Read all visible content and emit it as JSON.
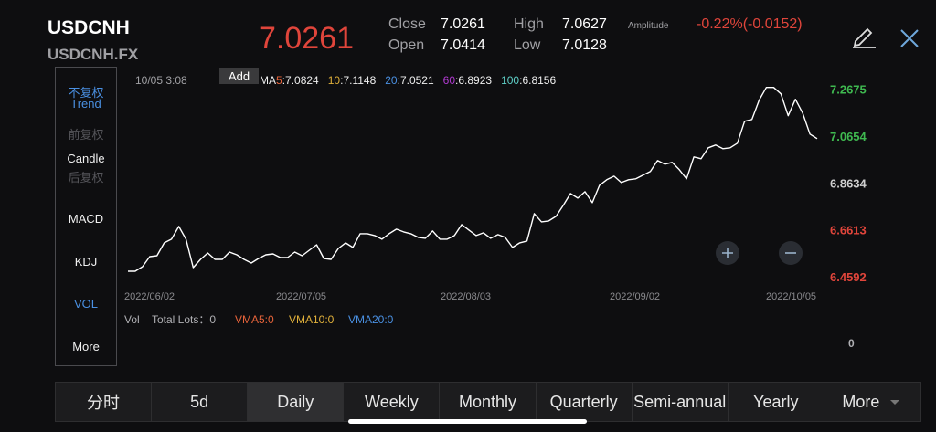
{
  "header": {
    "symbol": "USDCNH",
    "code": "USDCNH.FX",
    "price": "7.0261",
    "close_label": "Close",
    "close": "7.0261",
    "open_label": "Open",
    "open": "7.0414",
    "high_label": "High",
    "high": "7.0627",
    "low_label": "Low",
    "low": "7.0128",
    "amplitude_label": "Amplitude",
    "change": "-0.22%(-0.0152)"
  },
  "sidebar": [
    "不复权",
    "Trend",
    "前复权",
    "Candle",
    "后复权",
    "MACD",
    "KDJ",
    "VOL",
    "More"
  ],
  "chart": {
    "type": "line",
    "date": "10/05 3:08",
    "add": "Add",
    "ma_prefix": "MA",
    "separator": ":",
    "ma": [
      {
        "period": "5",
        "value": "7.0824",
        "color": "#e8643b"
      },
      {
        "period": "10",
        "value": "7.1148",
        "color": "#e0b03a"
      },
      {
        "period": "20",
        "value": "7.0521",
        "color": "#4a90e2"
      },
      {
        "period": "60",
        "value": "6.8923",
        "color": "#b03ad0"
      },
      {
        "period": "100",
        "value": "6.8156",
        "color": "#5fd0c8"
      }
    ],
    "color": "#ffffff",
    "ylim": [
      6.4592,
      7.29
    ],
    "yticks": [
      7.2675,
      7.0654,
      6.8634,
      6.6613,
      6.4592
    ],
    "ytick_colors": [
      "#3fb950",
      "#3fb950",
      "#cfcfcf",
      "#e0453b",
      "#e0453b"
    ],
    "xlabels": [
      "2022/06/02",
      "2022/07/05",
      "2022/08/03",
      "2022/09/02",
      "2022/10/05"
    ],
    "values": [
      6.4829,
      6.4829,
      6.5026,
      6.5459,
      6.5499,
      6.6051,
      6.6209,
      6.6761,
      6.6209,
      6.4986,
      6.5341,
      6.5617,
      6.5341,
      6.5341,
      6.5657,
      6.5538,
      6.5341,
      6.5183,
      6.5381,
      6.5538,
      6.5578,
      6.542,
      6.542,
      6.5657,
      6.5499,
      6.5735,
      6.5972,
      6.5381,
      6.5341,
      6.5814,
      6.6051,
      6.5854,
      6.6445,
      6.6445,
      6.6366,
      6.6209,
      6.6445,
      6.6642,
      6.6524,
      6.6445,
      6.6288,
      6.6248,
      6.6564,
      6.6209,
      6.6209,
      6.6366,
      6.684,
      6.6603,
      6.6366,
      6.6485,
      6.6248,
      6.6406,
      6.6288,
      6.5854,
      6.6051,
      6.613,
      6.7313,
      6.6958,
      6.6997,
      6.7194,
      6.7668,
      6.818,
      6.7983,
      6.8259,
      6.7786,
      6.8535,
      6.8772,
      6.8929,
      6.8653,
      6.8772,
      6.8811,
      6.8969,
      6.9126,
      6.96,
      6.9442,
      6.9521,
      6.9205,
      6.8811,
      6.9757,
      6.9678,
      7.0152,
      7.027,
      7.0112,
      7.0152,
      7.0349,
      7.1295,
      7.1374,
      7.2202,
      7.2754,
      7.2754,
      7.2478,
      7.1532,
      7.2241,
      7.165,
      7.0743,
      7.0546
    ]
  },
  "volume": {
    "label": "Vol",
    "total": "Total Lots：0",
    "vma": [
      {
        "text": "VMA5:0",
        "color": "#e8643b"
      },
      {
        "text": "VMA10:0",
        "color": "#e0b03a"
      },
      {
        "text": "VMA20:0",
        "color": "#4a90e2"
      }
    ],
    "axis": "0"
  },
  "tabs": [
    "分时",
    "5d",
    "Daily",
    "Weekly",
    "Monthly",
    "Quarterly",
    "Semi-annual",
    "Yearly",
    "More"
  ],
  "selected_tab": 2
}
